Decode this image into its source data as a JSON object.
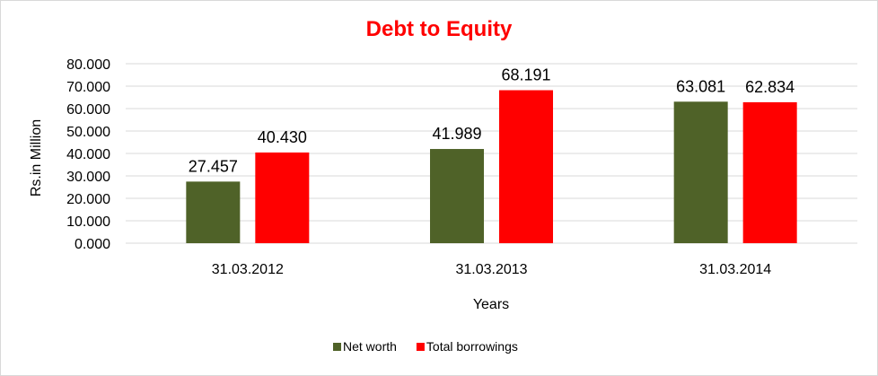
{
  "chart_data": {
    "type": "bar",
    "title": "Debt to Equity",
    "xlabel": "Years",
    "ylabel": "Rs.in Million",
    "categories": [
      "31.03.2012",
      "31.03.2013",
      "31.03.2014"
    ],
    "series": [
      {
        "name": "Net worth",
        "color": "#4f6228",
        "values": [
          27.457,
          41.989,
          63.081
        ]
      },
      {
        "name": "Total borrowings",
        "color": "#ff0000",
        "values": [
          40.43,
          68.191,
          62.834
        ]
      }
    ],
    "data_labels": [
      [
        "27.457",
        "41.989",
        "63.081"
      ],
      [
        "40.430",
        "68.191",
        "62.834"
      ]
    ],
    "ylim": [
      0,
      80
    ],
    "yticks": [
      "0.000",
      "10.000",
      "20.000",
      "30.000",
      "40.000",
      "50.000",
      "60.000",
      "70.000",
      "80.000"
    ],
    "grid": true,
    "legend_position": "bottom"
  }
}
